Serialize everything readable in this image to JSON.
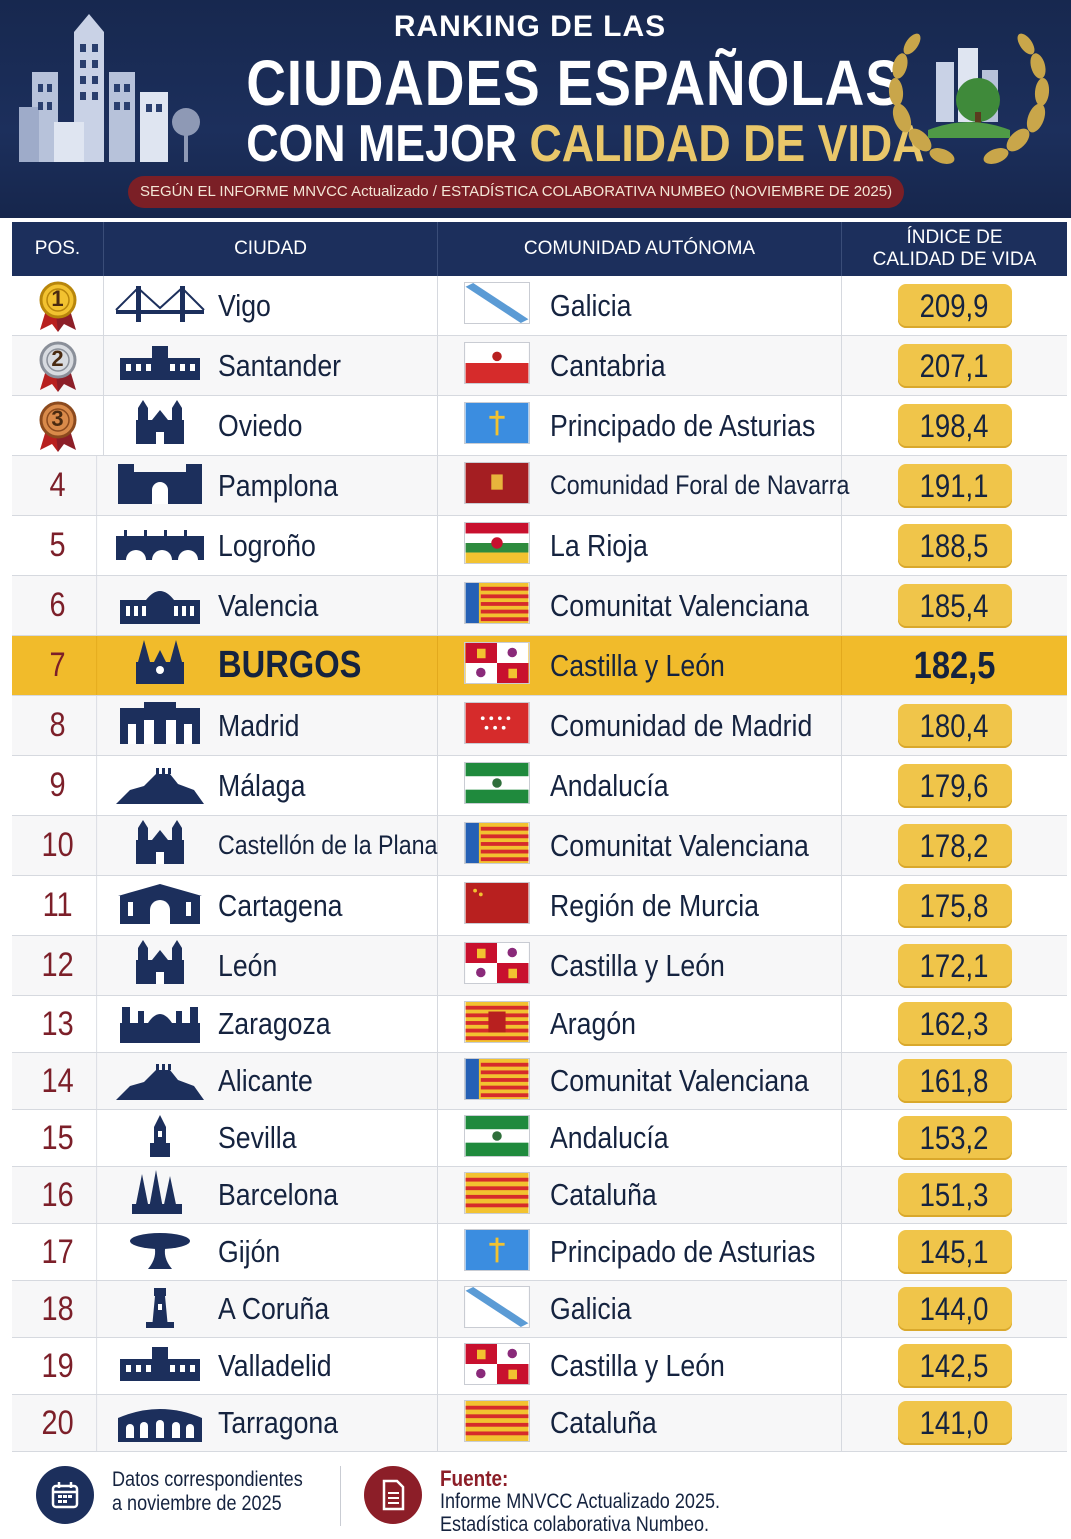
{
  "header": {
    "title_top": "RANKING DE LAS",
    "title_main": "CIUDADES ESPAÑOLAS",
    "title_sub_white": "CON MEJOR",
    "title_sub_gold": "CALIDAD DE VIDA",
    "source_note": "SEGÚN EL INFORME MNVCC Actualizado / ESTADÍSTICA COLABORATIVA NUMBEO (NOVIEMBRE DE 2025)"
  },
  "table": {
    "columns": {
      "pos": "POS.",
      "city": "CIUDAD",
      "community": "COMUNIDAD AUTÓNOMA",
      "index_line1": "ÍNDICE DE",
      "index_line2": "CALIDAD DE VIDA"
    },
    "rows": [
      {
        "pos": "1",
        "city": "Vigo",
        "community": "Galicia",
        "score": "209,9",
        "medal": "gold",
        "flag": "galicia",
        "icon": "bridge-icon"
      },
      {
        "pos": "2",
        "city": "Santander",
        "community": "Cantabria",
        "score": "207,1",
        "medal": "silver",
        "flag": "cantabria",
        "icon": "palace-icon"
      },
      {
        "pos": "3",
        "city": "Oviedo",
        "community": "Principado de Asturias",
        "score": "198,4",
        "medal": "bronze",
        "flag": "asturias",
        "icon": "cathedral-icon"
      },
      {
        "pos": "4",
        "city": "Pamplona",
        "community": "Comunidad Foral de Navarra",
        "score": "191,1",
        "flag": "navarra",
        "icon": "fortress-gate-icon"
      },
      {
        "pos": "5",
        "city": "Logroño",
        "community": "La Rioja",
        "score": "188,5",
        "flag": "rioja",
        "icon": "stone-bridge-icon"
      },
      {
        "pos": "6",
        "city": "Valencia",
        "community": "Comunitat Valenciana",
        "score": "185,4",
        "flag": "valenciana",
        "icon": "town-hall-icon"
      },
      {
        "pos": "7",
        "city": "BURGOS",
        "community": "Castilla y León",
        "score": "182,5",
        "highlight": true,
        "flag": "castilla",
        "icon": "gothic-cathedral-icon"
      },
      {
        "pos": "8",
        "city": "Madrid",
        "community": "Comunidad de Madrid",
        "score": "180,4",
        "flag": "madrid",
        "icon": "gate-icon"
      },
      {
        "pos": "9",
        "city": "Málaga",
        "community": "Andalucía",
        "score": "179,6",
        "flag": "andalucia",
        "icon": "castle-hill-icon"
      },
      {
        "pos": "10",
        "city": "Castellón de la Plana",
        "community": "Comunitat Valenciana",
        "score": "178,2",
        "flag": "valenciana",
        "icon": "cathedral-icon"
      },
      {
        "pos": "11",
        "city": "Cartagena",
        "community": "Región de Murcia",
        "score": "175,8",
        "flag": "murcia",
        "icon": "arch-building-icon"
      },
      {
        "pos": "12",
        "city": "León",
        "community": "Castilla y León",
        "score": "172,1",
        "flag": "castilla",
        "icon": "cathedral-icon"
      },
      {
        "pos": "13",
        "city": "Zaragoza",
        "community": "Aragón",
        "score": "162,3",
        "flag": "aragon",
        "icon": "basilica-icon"
      },
      {
        "pos": "14",
        "city": "Alicante",
        "community": "Comunitat Valenciana",
        "score": "161,8",
        "flag": "valenciana",
        "icon": "castle-hill-icon"
      },
      {
        "pos": "15",
        "city": "Sevilla",
        "community": "Andalucía",
        "score": "153,2",
        "flag": "andalucia",
        "icon": "tower-icon"
      },
      {
        "pos": "16",
        "city": "Barcelona",
        "community": "Cataluña",
        "score": "151,3",
        "flag": "cataluna",
        "icon": "spires-icon"
      },
      {
        "pos": "17",
        "city": "Gijón",
        "community": "Principado de Asturias",
        "score": "145,1",
        "flag": "asturias",
        "icon": "sculpture-icon"
      },
      {
        "pos": "18",
        "city": "A Coruña",
        "community": "Galicia",
        "score": "144,0",
        "flag": "galicia",
        "icon": "lighthouse-icon"
      },
      {
        "pos": "19",
        "city": "Valladelid",
        "community": "Castilla y León",
        "score": "142,5",
        "flag": "castilla",
        "icon": "palace-icon"
      },
      {
        "pos": "20",
        "city": "Tarragona",
        "community": "Cataluña",
        "score": "141,0",
        "flag": "cataluna",
        "icon": "amphitheatre-icon"
      }
    ]
  },
  "footer": {
    "date_line1": "Datos correspondientes",
    "date_line2": "a noviembre de 2025",
    "source_label": "Fuente:",
    "source_line1": "Informe MNVCC Actualizado 2025.",
    "source_line2": "Estadística colaborativa Numbeo."
  },
  "colors": {
    "navy": "#1c2f5c",
    "gold": "#f0c54a",
    "highlight": "#f1bb2b",
    "maroon": "#7c1f29"
  }
}
